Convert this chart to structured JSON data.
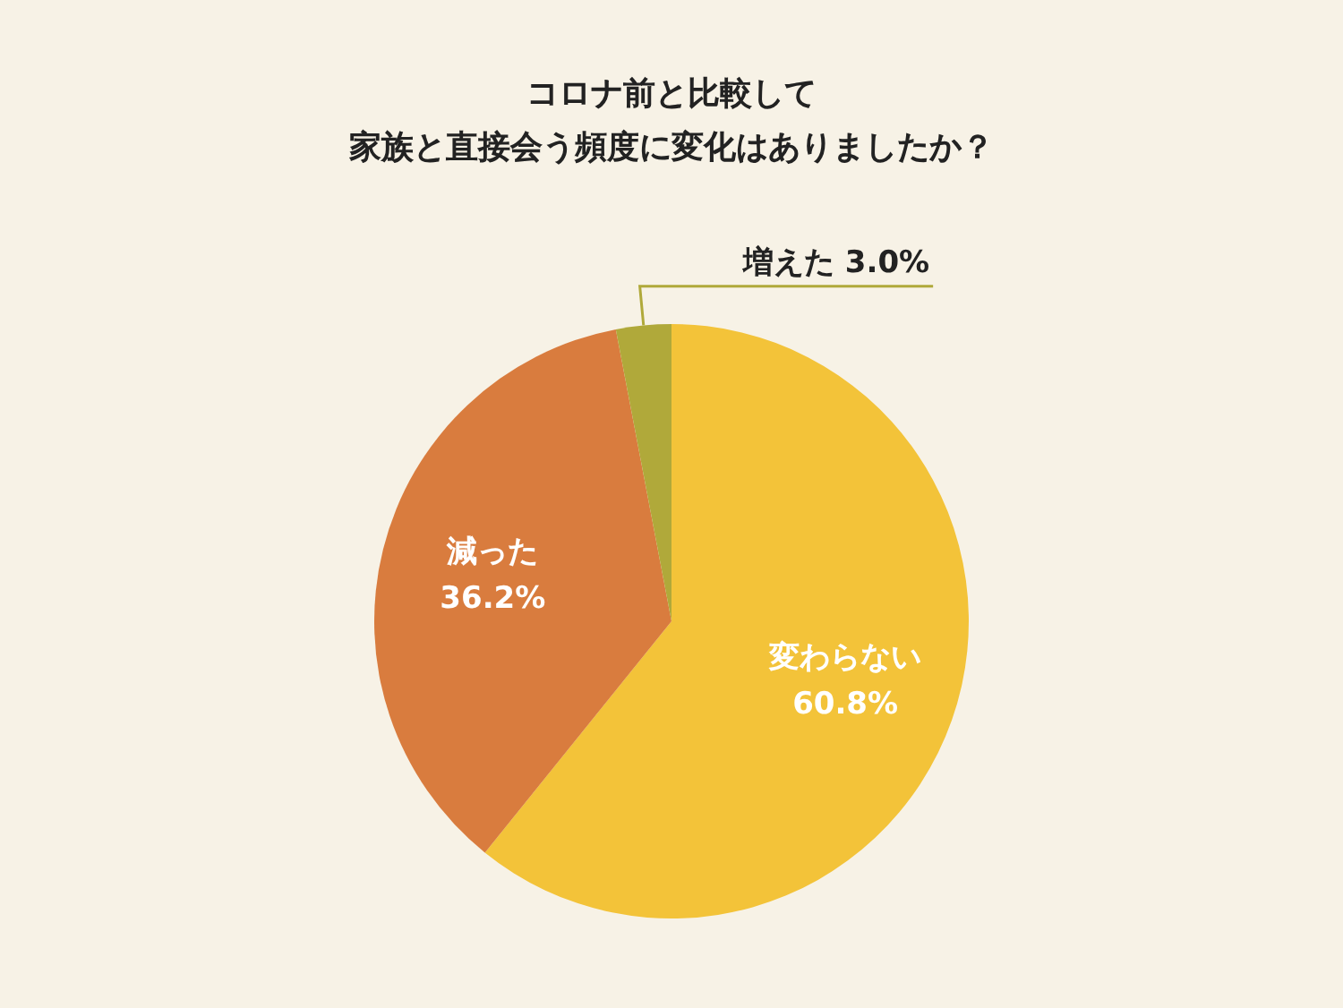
{
  "chart_data": {
    "type": "pie",
    "title": "コロナ前と比較して",
    "subtitle": "家族と直接会う頻度に変化はありましたか？",
    "categories": [
      "変わらない",
      "減った",
      "増えた"
    ],
    "values": [
      60.8,
      36.2,
      3.0
    ],
    "value_labels": [
      "60.8%",
      "36.2%",
      "3.0%"
    ],
    "colors": [
      "#f3c339",
      "#d97c3e",
      "#b0a93a"
    ],
    "legend": false
  }
}
